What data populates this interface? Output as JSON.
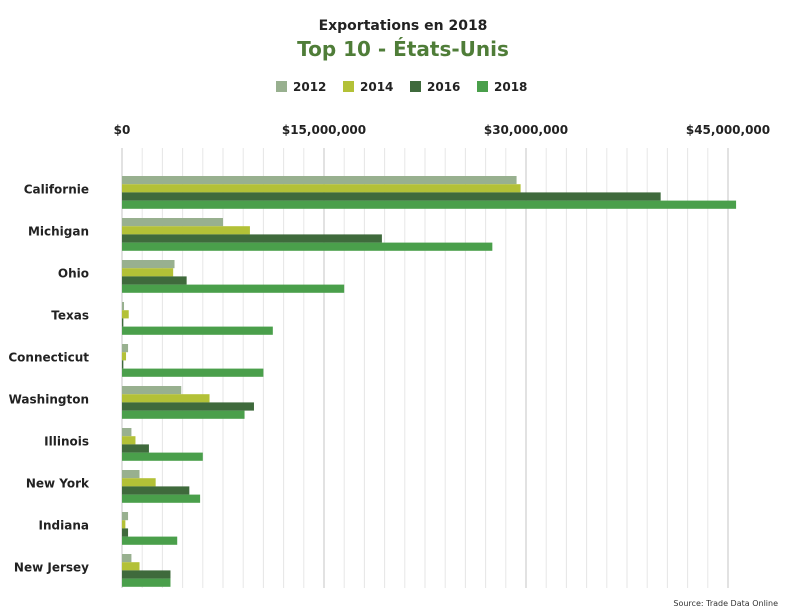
{
  "chart_data": {
    "type": "bar",
    "orientation": "horizontal",
    "title": "Exportations en 2018",
    "subtitle": "Top 10 - États-Unis",
    "source": "Source: Trade Data Online",
    "categories": [
      "Californie",
      "Michigan",
      "Ohio",
      "Texas",
      "Connecticut",
      "Washington",
      "Illinois",
      "New York",
      "Indiana",
      "New Jersey"
    ],
    "series": [
      {
        "name": "2012",
        "color": "#98b08f",
        "values": [
          29300000,
          7500000,
          3900000,
          150000,
          450000,
          4400000,
          700000,
          1300000,
          450000,
          700000
        ]
      },
      {
        "name": "2014",
        "color": "#b3c137",
        "values": [
          29600000,
          9500000,
          3800000,
          500000,
          300000,
          6500000,
          1000000,
          2500000,
          250000,
          1300000
        ]
      },
      {
        "name": "2016",
        "color": "#3f6a3c",
        "values": [
          40000000,
          19300000,
          4800000,
          100000,
          100000,
          9800000,
          2000000,
          5000000,
          450000,
          3600000
        ]
      },
      {
        "name": "2018",
        "color": "#4a9f4b",
        "values": [
          45600000,
          27500000,
          16500000,
          11200000,
          10500000,
          9100000,
          6000000,
          5800000,
          4100000,
          3600000
        ]
      }
    ],
    "x_ticks": [
      "$0",
      "$15,000,000",
      "$30,000,000",
      "$45,000,000"
    ],
    "xlim": [
      0,
      50000000
    ],
    "legend_position": "top-center",
    "grid": true,
    "subtitle_color": "#4f7d38"
  }
}
